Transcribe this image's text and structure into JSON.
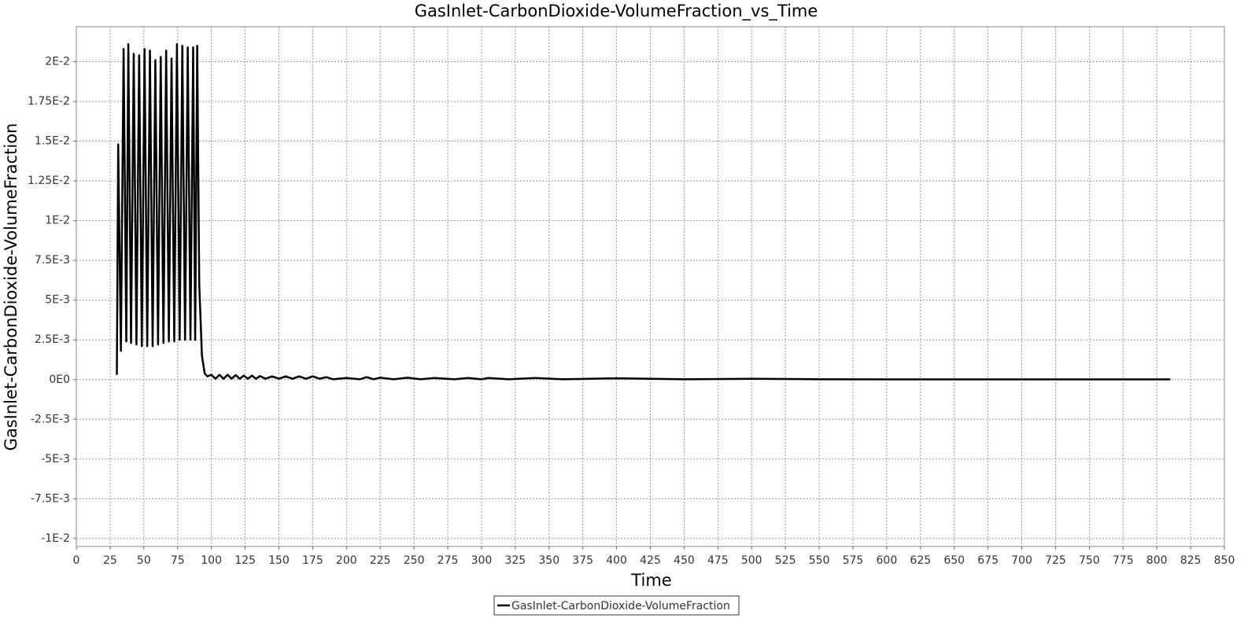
{
  "chart_data": {
    "type": "line",
    "title": "GasInlet-CarbonDioxide-VolumeFraction_vs_Time",
    "x_label": "Time",
    "y_label": "GasInlet-CarbonDioxide-VolumeFraction",
    "xlim": [
      0,
      850
    ],
    "ylim": [
      -0.0105,
      0.0222
    ],
    "xticks": [
      0,
      25,
      50,
      75,
      100,
      125,
      150,
      175,
      200,
      225,
      250,
      275,
      300,
      325,
      350,
      375,
      400,
      425,
      450,
      475,
      500,
      525,
      550,
      575,
      600,
      625,
      650,
      675,
      700,
      725,
      750,
      775,
      800,
      825,
      850
    ],
    "yticks": [
      {
        "value": -0.01,
        "label": "-1E-2"
      },
      {
        "value": -0.0075,
        "label": "-7.5E-3"
      },
      {
        "value": -0.005,
        "label": "-5E-3"
      },
      {
        "value": -0.0025,
        "label": "-2.5E-3"
      },
      {
        "value": 0,
        "label": "0E0"
      },
      {
        "value": 0.0025,
        "label": "2.5E-3"
      },
      {
        "value": 0.005,
        "label": "5E-3"
      },
      {
        "value": 0.0075,
        "label": "7.5E-3"
      },
      {
        "value": 0.01,
        "label": "1E-2"
      },
      {
        "value": 0.0125,
        "label": "1.25E-2"
      },
      {
        "value": 0.015,
        "label": "1.5E-2"
      },
      {
        "value": 0.0175,
        "label": "1.75E-2"
      },
      {
        "value": 0.02,
        "label": "2E-2"
      }
    ],
    "grid": true,
    "legend": "bottom",
    "x": [
      30,
      31,
      33,
      35,
      37,
      38.5,
      40.5,
      42.5,
      44.5,
      46.5,
      48.5,
      50.5,
      52.5,
      54.5,
      56.5,
      58.5,
      60.5,
      62.5,
      64.5,
      66.5,
      68.5,
      70.5,
      72.5,
      74.5,
      76.5,
      78.5,
      80.5,
      82.5,
      84.5,
      86.5,
      88,
      89.5,
      91,
      93,
      95,
      97,
      100,
      103,
      106,
      109,
      112,
      115,
      118,
      121,
      124,
      127,
      130,
      133,
      136,
      140,
      145,
      150,
      155,
      160,
      165,
      170,
      175,
      180,
      185,
      190,
      200,
      210,
      215,
      220,
      225,
      235,
      245,
      255,
      265,
      280,
      290,
      300,
      305,
      320,
      340,
      360,
      400,
      450,
      500,
      550,
      600,
      700,
      810
    ],
    "series": [
      {
        "name": "GasInlet-CarbonDioxide-VolumeFraction",
        "color": "#000000",
        "values": [
          0.0003,
          0.0148,
          0.0018,
          0.0208,
          0.0024,
          0.0211,
          0.0023,
          0.0205,
          0.0022,
          0.0204,
          0.0021,
          0.0208,
          0.0021,
          0.0207,
          0.0021,
          0.0201,
          0.0022,
          0.0203,
          0.0023,
          0.0207,
          0.0024,
          0.0202,
          0.0024,
          0.0211,
          0.0025,
          0.021,
          0.0025,
          0.0209,
          0.0025,
          0.0209,
          0.0025,
          0.021,
          0.006,
          0.0015,
          0.0004,
          0.0002,
          0.0003,
          5e-05,
          0.0003,
          5e-05,
          0.0003,
          5e-05,
          0.00028,
          5e-05,
          0.00025,
          5e-05,
          0.00025,
          5e-05,
          0.00022,
          5e-05,
          0.0002,
          5e-05,
          0.0002,
          5e-05,
          0.0002,
          5e-05,
          0.0002,
          5e-05,
          0.00015,
          2e-05,
          0.0001,
          2e-05,
          0.00015,
          2e-05,
          0.00012,
          2e-05,
          0.00012,
          2e-05,
          0.0001,
          2e-05,
          0.0001,
          2e-05,
          0.0001,
          2e-05,
          0.0001,
          2e-05,
          8e-05,
          2e-05,
          5e-05,
          2e-05,
          1e-05,
          1e-05,
          1e-05
        ]
      }
    ]
  }
}
